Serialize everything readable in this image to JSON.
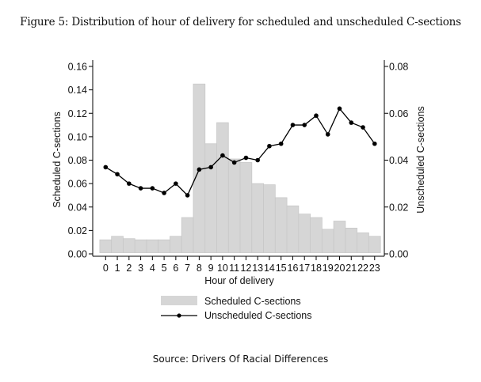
{
  "caption": "Figure 5: Distribution of hour of delivery for scheduled and unscheduled C-sections",
  "source": "Source: Drivers Of Racial Differences",
  "colors": {
    "bar_fill": "#d6d6d6",
    "bar_stroke": "#c8c8c8",
    "line": "#000000",
    "axis": "#000000"
  },
  "chart_data": {
    "type": "bar+line",
    "title": "Distribution of hour of delivery for scheduled and unscheduled C-sections",
    "xlabel": "Hour of delivery",
    "ylabel_left": "Scheduled C-sections",
    "ylabel_right": "Unscheduled C-sections",
    "categories": [
      "0",
      "1",
      "2",
      "3",
      "4",
      "5",
      "6",
      "7",
      "8",
      "9",
      "10",
      "11",
      "12",
      "13",
      "14",
      "15",
      "16",
      "17",
      "18",
      "19",
      "20",
      "21",
      "22",
      "23"
    ],
    "ylim_left": [
      0,
      0.16
    ],
    "ylim_right": [
      0,
      0.08
    ],
    "yticks_left": [
      "0.00",
      "0.02",
      "0.04",
      "0.06",
      "0.08",
      "0.10",
      "0.12",
      "0.14",
      "0.16"
    ],
    "yticks_right": [
      "0.00",
      "0.02",
      "0.04",
      "0.06",
      "0.08"
    ],
    "grid": false,
    "legend_position": "bottom",
    "series": [
      {
        "name": "Scheduled C-sections",
        "type": "bar",
        "axis": "left",
        "values": [
          0.012,
          0.015,
          0.013,
          0.012,
          0.012,
          0.012,
          0.015,
          0.031,
          0.145,
          0.094,
          0.112,
          0.081,
          0.078,
          0.06,
          0.059,
          0.048,
          0.041,
          0.034,
          0.031,
          0.021,
          0.028,
          0.022,
          0.018,
          0.015
        ]
      },
      {
        "name": "Unscheduled C-sections",
        "type": "line",
        "axis": "right",
        "values": [
          0.037,
          0.034,
          0.03,
          0.028,
          0.028,
          0.026,
          0.03,
          0.025,
          0.036,
          0.037,
          0.042,
          0.039,
          0.041,
          0.04,
          0.046,
          0.047,
          0.055,
          0.055,
          0.059,
          0.051,
          0.062,
          0.056,
          0.054,
          0.047
        ]
      }
    ]
  }
}
